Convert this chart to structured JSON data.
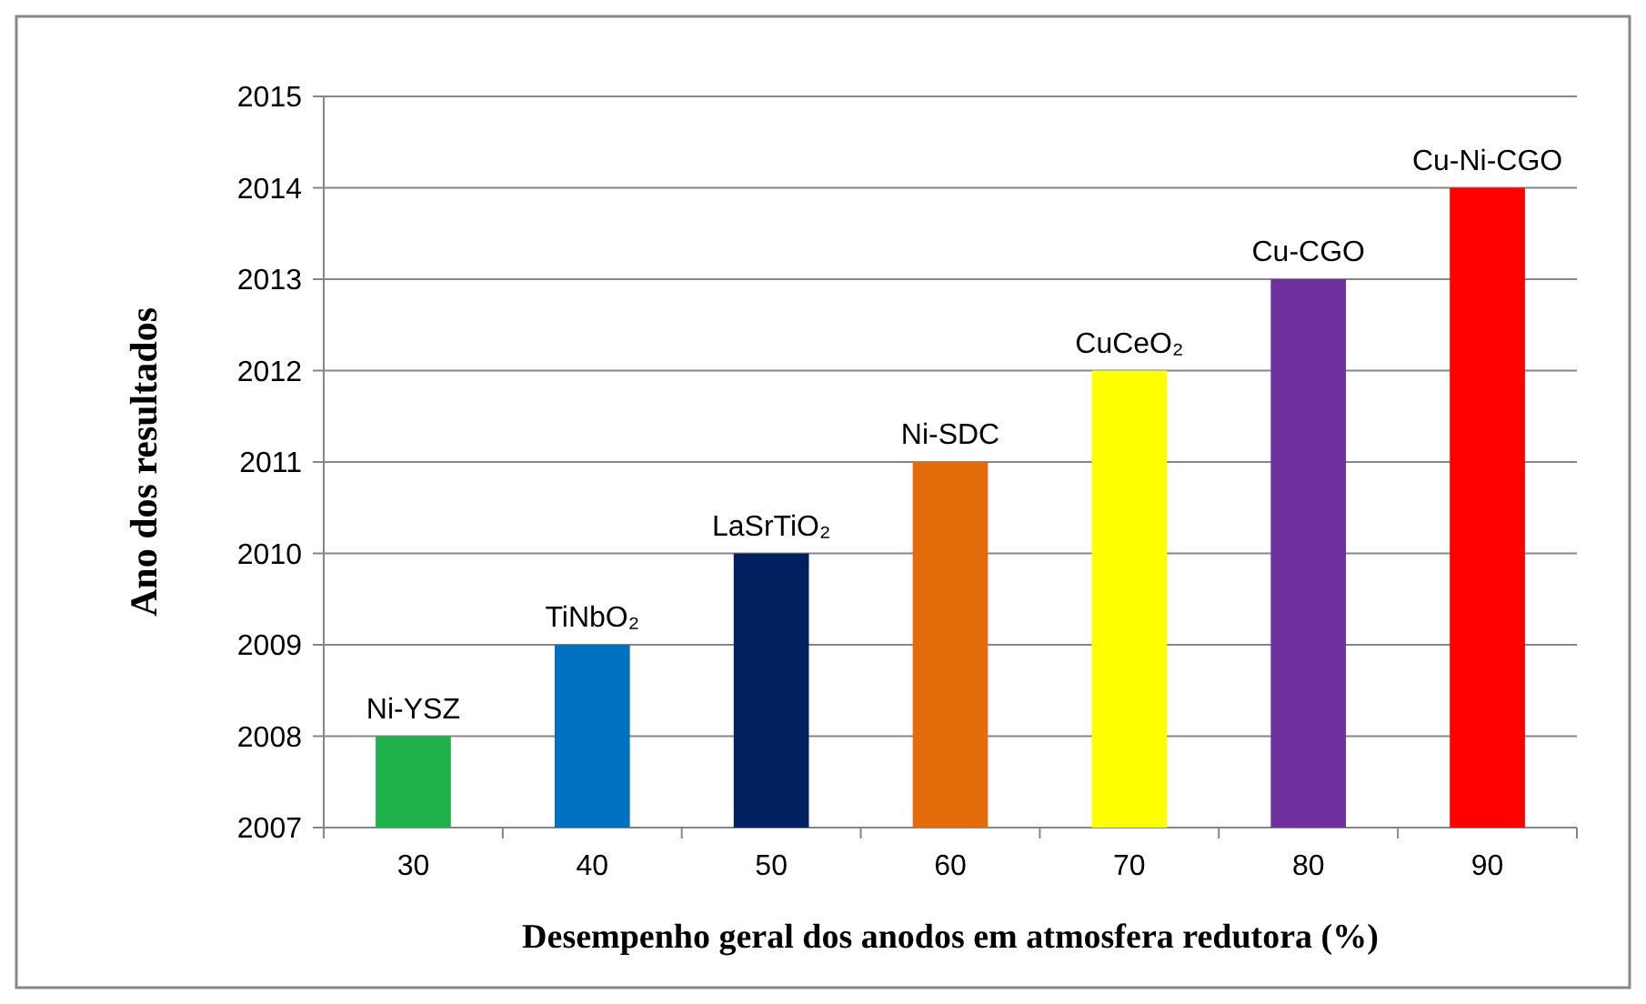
{
  "chart_data": {
    "type": "bar",
    "xlabel": "Desempenho geral dos anodos em atmosfera redutora (%)",
    "ylabel": "Ano dos resultados",
    "categories": [
      "30",
      "40",
      "50",
      "60",
      "70",
      "80",
      "90"
    ],
    "values": [
      2008,
      2009,
      2010,
      2011,
      2012,
      2013,
      2014
    ],
    "colors": [
      "#1fb14c",
      "#0070c0",
      "#002060",
      "#e46c0a",
      "#ffff00",
      "#7030a0",
      "#ff0000"
    ],
    "ylim": [
      2007,
      2015
    ],
    "yticks": [
      2007,
      2008,
      2009,
      2010,
      2011,
      2012,
      2013,
      2014,
      2015
    ],
    "grid": "y",
    "annotations": [
      {
        "text": "Ni-YSZ",
        "x": "30",
        "y": 2008
      },
      {
        "text": "TiNbO₂",
        "x": "40",
        "y": 2009
      },
      {
        "text": "LaSrTiO₂",
        "x": "50",
        "y": 2010
      },
      {
        "text": "Ni-SDC",
        "x": "60",
        "y": 2011
      },
      {
        "text": "CuCeO₂",
        "x": "70",
        "y": 2012
      },
      {
        "text": "Cu-CGO",
        "x": "80",
        "y": 2013
      },
      {
        "text": "Cu-Ni-CGO",
        "x": "90",
        "y": 2014
      }
    ]
  }
}
